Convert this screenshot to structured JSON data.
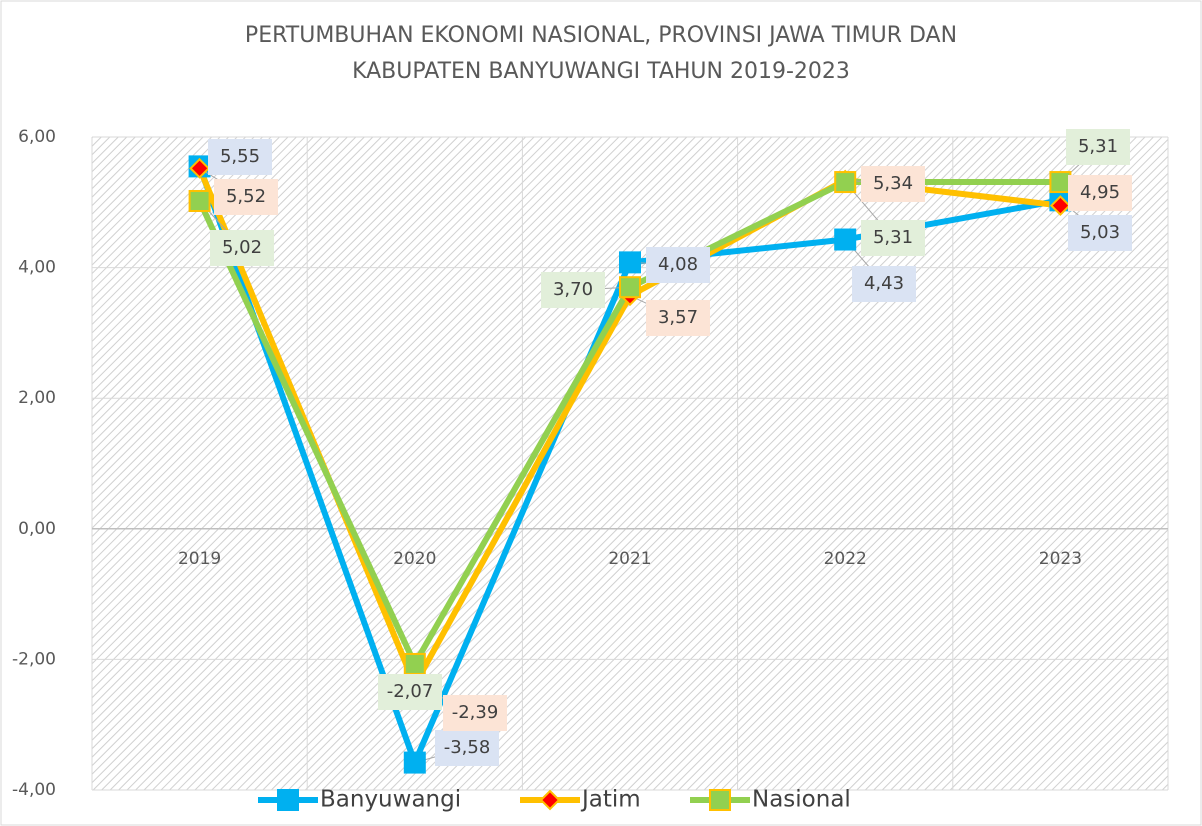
{
  "chart_data": {
    "type": "line",
    "title": [
      "PERTUMBUHAN EKONOMI NASIONAL, PROVINSI JAWA TIMUR DAN",
      "KABUPATEN BANYUWANGI TAHUN 2019-2023"
    ],
    "categories": [
      "2019",
      "2020",
      "2021",
      "2022",
      "2023"
    ],
    "series": [
      {
        "name": "Banyuwangi",
        "color": "#00b0f0",
        "marker": "square",
        "marker_color": "#00b0f0",
        "label_color": "#dae3f3",
        "values": [
          5.55,
          -3.58,
          4.08,
          4.43,
          5.03
        ],
        "value_labels": [
          "5,55",
          "-3,58",
          "4,08",
          "4,43",
          "5,03"
        ]
      },
      {
        "name": "Jatim",
        "color": "#ffc000",
        "marker": "diamond",
        "marker_color": "#ff0000",
        "label_color": "#fce4d6",
        "values": [
          5.52,
          -2.39,
          3.57,
          5.34,
          4.95
        ],
        "value_labels": [
          "5,52",
          "-2,39",
          "3,57",
          "5,34",
          "4,95"
        ]
      },
      {
        "name": "Nasional",
        "color": "#92d050",
        "marker": "square",
        "marker_color": "#92d050",
        "label_color": "#e2efda",
        "values": [
          5.02,
          -2.07,
          3.7,
          5.31,
          5.31
        ],
        "value_labels": [
          "5,02",
          "-2,07",
          "3,70",
          "5,31",
          "5,31"
        ]
      }
    ],
    "ylim": [
      -4,
      6
    ],
    "yticks": [
      {
        "value": -4,
        "label": "-4,00"
      },
      {
        "value": -2,
        "label": "-2,00"
      },
      {
        "value": 0,
        "label": "0,00"
      },
      {
        "value": 2,
        "label": "2,00"
      },
      {
        "value": 4,
        "label": "4,00"
      },
      {
        "value": 6,
        "label": "6,00"
      }
    ],
    "grid": true,
    "legend": "bottom"
  }
}
